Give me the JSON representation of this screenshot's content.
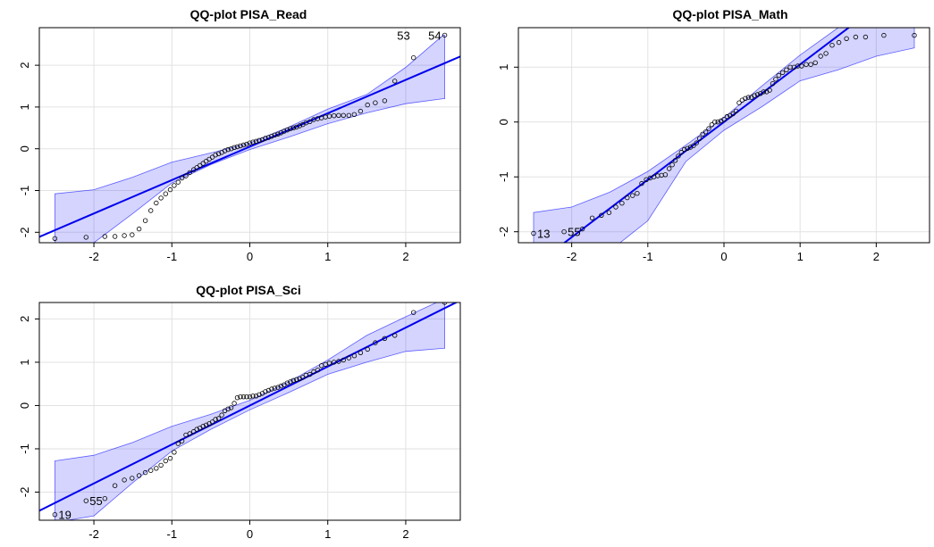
{
  "chart_data": [
    {
      "type": "scatter",
      "title": "QQ-plot PISA_Read",
      "xlabel": "",
      "ylabel": "",
      "xlim": [
        -2.7,
        2.7
      ],
      "ylim": [
        -2.25,
        2.9
      ],
      "xticks": [
        -2,
        -1,
        0,
        1,
        2
      ],
      "yticks": [
        -2,
        -1,
        0,
        1,
        2
      ],
      "grid": true,
      "colors": {
        "line": "#0000ee",
        "band": "#0000ff"
      },
      "reference_line": {
        "slope": 0.8,
        "intercept": 0.05
      },
      "envelope": {
        "x": [
          -2.5,
          -2.0,
          -1.5,
          -1.0,
          -0.5,
          0.0,
          0.5,
          1.0,
          1.5,
          2.0,
          2.48,
          2.5
        ],
        "upper": [
          -1.08,
          -0.98,
          -0.68,
          -0.32,
          -0.1,
          0.14,
          0.52,
          0.95,
          1.3,
          1.95,
          2.72,
          2.72
        ],
        "lower": [
          -2.25,
          -2.25,
          -1.55,
          -0.82,
          -0.38,
          -0.02,
          0.28,
          0.6,
          0.86,
          1.08,
          1.2,
          1.2
        ]
      },
      "points": {
        "x": [
          -2.5,
          -2.1,
          -1.86,
          -1.73,
          -1.61,
          -1.51,
          -1.42,
          -1.34,
          -1.27,
          -1.2,
          -1.14,
          -1.08,
          -1.02,
          -0.97,
          -0.92,
          -0.87,
          -0.82,
          -0.77,
          -0.72,
          -0.68,
          -0.64,
          -0.6,
          -0.56,
          -0.52,
          -0.48,
          -0.44,
          -0.4,
          -0.36,
          -0.32,
          -0.28,
          -0.24,
          -0.2,
          -0.16,
          -0.12,
          -0.08,
          -0.04,
          0.0,
          0.04,
          0.08,
          0.12,
          0.16,
          0.2,
          0.24,
          0.28,
          0.32,
          0.36,
          0.4,
          0.44,
          0.48,
          0.52,
          0.56,
          0.6,
          0.64,
          0.68,
          0.72,
          0.77,
          0.82,
          0.87,
          0.92,
          0.97,
          1.02,
          1.08,
          1.14,
          1.2,
          1.27,
          1.34,
          1.42,
          1.51,
          1.61,
          1.73,
          1.86,
          2.1,
          2.5
        ],
        "y": [
          -2.15,
          -2.12,
          -2.1,
          -2.1,
          -2.08,
          -2.06,
          -1.92,
          -1.72,
          -1.48,
          -1.3,
          -1.18,
          -1.08,
          -0.98,
          -0.88,
          -0.8,
          -0.7,
          -0.65,
          -0.57,
          -0.5,
          -0.45,
          -0.4,
          -0.35,
          -0.3,
          -0.25,
          -0.2,
          -0.15,
          -0.12,
          -0.09,
          -0.05,
          -0.02,
          0.0,
          0.03,
          0.05,
          0.07,
          0.09,
          0.11,
          0.14,
          0.16,
          0.18,
          0.2,
          0.22,
          0.25,
          0.27,
          0.3,
          0.33,
          0.35,
          0.38,
          0.42,
          0.45,
          0.48,
          0.5,
          0.52,
          0.55,
          0.58,
          0.62,
          0.65,
          0.7,
          0.72,
          0.74,
          0.76,
          0.78,
          0.79,
          0.8,
          0.8,
          0.8,
          0.82,
          0.9,
          1.05,
          1.1,
          1.15,
          1.62,
          2.18,
          2.72
        ]
      },
      "point_labels": [
        {
          "text": "53",
          "x": 2.1,
          "y": 2.72
        },
        {
          "text": "54",
          "x": 2.5,
          "y": 2.72
        }
      ]
    },
    {
      "type": "scatter",
      "title": "QQ-plot PISA_Math",
      "xlabel": "",
      "ylabel": "",
      "xlim": [
        -2.7,
        2.7
      ],
      "ylim": [
        -2.2,
        1.72
      ],
      "xticks": [
        -2,
        -1,
        0,
        1,
        2
      ],
      "yticks": [
        -2,
        -1,
        0,
        1
      ],
      "grid": true,
      "colors": {
        "line": "#0000ee",
        "band": "#0000ff"
      },
      "reference_line": {
        "slope": 1.05,
        "intercept": 0.0
      },
      "envelope": {
        "x": [
          -2.5,
          -2.0,
          -1.5,
          -1.0,
          -0.5,
          0.0,
          0.5,
          1.0,
          1.5,
          2.0,
          2.5
        ],
        "upper": [
          -1.65,
          -1.55,
          -1.28,
          -0.9,
          -0.42,
          0.08,
          0.66,
          1.22,
          1.72,
          2.3,
          2.9
        ],
        "lower": [
          -2.4,
          -2.45,
          -2.35,
          -1.8,
          -0.72,
          -0.15,
          0.28,
          0.75,
          0.95,
          1.2,
          1.35
        ]
      },
      "points": {
        "x": [
          -2.5,
          -2.1,
          -1.86,
          -1.73,
          -1.61,
          -1.51,
          -1.42,
          -1.34,
          -1.27,
          -1.2,
          -1.14,
          -1.08,
          -1.02,
          -0.97,
          -0.92,
          -0.87,
          -0.82,
          -0.77,
          -0.72,
          -0.68,
          -0.64,
          -0.6,
          -0.56,
          -0.52,
          -0.48,
          -0.44,
          -0.4,
          -0.36,
          -0.32,
          -0.28,
          -0.24,
          -0.2,
          -0.16,
          -0.12,
          -0.08,
          -0.04,
          0.0,
          0.04,
          0.08,
          0.12,
          0.16,
          0.2,
          0.24,
          0.28,
          0.32,
          0.36,
          0.4,
          0.44,
          0.48,
          0.52,
          0.56,
          0.6,
          0.64,
          0.68,
          0.72,
          0.77,
          0.82,
          0.87,
          0.92,
          0.97,
          1.02,
          1.08,
          1.14,
          1.2,
          1.27,
          1.34,
          1.42,
          1.51,
          1.61,
          1.73,
          1.86,
          2.1,
          2.5
        ],
        "y": [
          -2.03,
          -2.0,
          -1.95,
          -1.75,
          -1.7,
          -1.65,
          -1.55,
          -1.48,
          -1.38,
          -1.34,
          -1.3,
          -1.12,
          -1.05,
          -1.02,
          -1.0,
          -0.98,
          -0.97,
          -0.96,
          -0.85,
          -0.78,
          -0.7,
          -0.62,
          -0.55,
          -0.5,
          -0.48,
          -0.46,
          -0.43,
          -0.38,
          -0.3,
          -0.22,
          -0.18,
          -0.12,
          -0.05,
          0.0,
          0.0,
          0.02,
          0.05,
          0.1,
          0.12,
          0.15,
          0.2,
          0.35,
          0.4,
          0.43,
          0.45,
          0.45,
          0.48,
          0.5,
          0.52,
          0.55,
          0.55,
          0.58,
          0.7,
          0.78,
          0.85,
          0.9,
          0.95,
          1.0,
          1.0,
          1.02,
          1.02,
          1.05,
          1.05,
          1.08,
          1.2,
          1.25,
          1.4,
          1.45,
          1.52,
          1.55,
          1.55,
          1.58,
          1.58
        ]
      },
      "point_labels": [
        {
          "text": "13",
          "x": -2.5,
          "y": -2.03
        },
        {
          "text": "55",
          "x": -2.1,
          "y": -2.0
        }
      ]
    },
    {
      "type": "scatter",
      "title": "QQ-plot PISA_Sci",
      "xlabel": "",
      "ylabel": "",
      "xlim": [
        -2.7,
        2.7
      ],
      "ylim": [
        -2.65,
        2.38
      ],
      "xticks": [
        -2,
        -1,
        0,
        1,
        2
      ],
      "yticks": [
        -2,
        -1,
        0,
        1,
        2
      ],
      "grid": true,
      "colors": {
        "line": "#0000ee",
        "band": "#0000ff"
      },
      "reference_line": {
        "slope": 0.9,
        "intercept": 0.0
      },
      "envelope": {
        "x": [
          -2.5,
          -2.0,
          -1.5,
          -1.0,
          -0.5,
          0.0,
          0.5,
          1.0,
          1.5,
          2.0,
          2.48,
          2.5
        ],
        "upper": [
          -1.28,
          -1.15,
          -0.85,
          -0.48,
          -0.2,
          0.12,
          0.55,
          1.05,
          1.62,
          2.05,
          2.45,
          2.45
        ],
        "lower": [
          -2.7,
          -2.55,
          -1.78,
          -1.05,
          -0.55,
          -0.1,
          0.3,
          0.72,
          1.0,
          1.25,
          1.32,
          1.32
        ]
      },
      "points": {
        "x": [
          -2.5,
          -2.1,
          -1.86,
          -1.73,
          -1.61,
          -1.51,
          -1.42,
          -1.34,
          -1.27,
          -1.2,
          -1.14,
          -1.08,
          -1.02,
          -0.97,
          -0.92,
          -0.87,
          -0.82,
          -0.77,
          -0.72,
          -0.68,
          -0.64,
          -0.6,
          -0.56,
          -0.52,
          -0.48,
          -0.44,
          -0.4,
          -0.36,
          -0.32,
          -0.28,
          -0.24,
          -0.2,
          -0.16,
          -0.12,
          -0.08,
          -0.04,
          0.0,
          0.04,
          0.08,
          0.12,
          0.16,
          0.2,
          0.24,
          0.28,
          0.32,
          0.36,
          0.4,
          0.44,
          0.48,
          0.52,
          0.56,
          0.6,
          0.64,
          0.68,
          0.72,
          0.77,
          0.82,
          0.87,
          0.92,
          0.97,
          1.02,
          1.08,
          1.14,
          1.2,
          1.27,
          1.34,
          1.42,
          1.51,
          1.61,
          1.73,
          1.86,
          2.1,
          2.5
        ],
        "y": [
          -2.52,
          -2.2,
          -2.15,
          -1.85,
          -1.72,
          -1.68,
          -1.62,
          -1.55,
          -1.5,
          -1.45,
          -1.38,
          -1.28,
          -1.22,
          -1.08,
          -0.88,
          -0.82,
          -0.68,
          -0.65,
          -0.6,
          -0.55,
          -0.52,
          -0.48,
          -0.45,
          -0.42,
          -0.38,
          -0.32,
          -0.3,
          -0.22,
          -0.12,
          -0.08,
          -0.05,
          0.05,
          0.18,
          0.2,
          0.2,
          0.2,
          0.2,
          0.22,
          0.22,
          0.25,
          0.28,
          0.32,
          0.35,
          0.38,
          0.4,
          0.42,
          0.45,
          0.48,
          0.52,
          0.55,
          0.58,
          0.6,
          0.62,
          0.65,
          0.7,
          0.72,
          0.78,
          0.82,
          0.92,
          0.95,
          0.98,
          1.0,
          1.02,
          1.05,
          1.1,
          1.15,
          1.22,
          1.3,
          1.45,
          1.55,
          1.62,
          2.15,
          2.38
        ]
      },
      "point_labels": [
        {
          "text": "19",
          "x": -2.5,
          "y": -2.52
        },
        {
          "text": "55",
          "x": -2.1,
          "y": -2.2
        }
      ]
    }
  ]
}
